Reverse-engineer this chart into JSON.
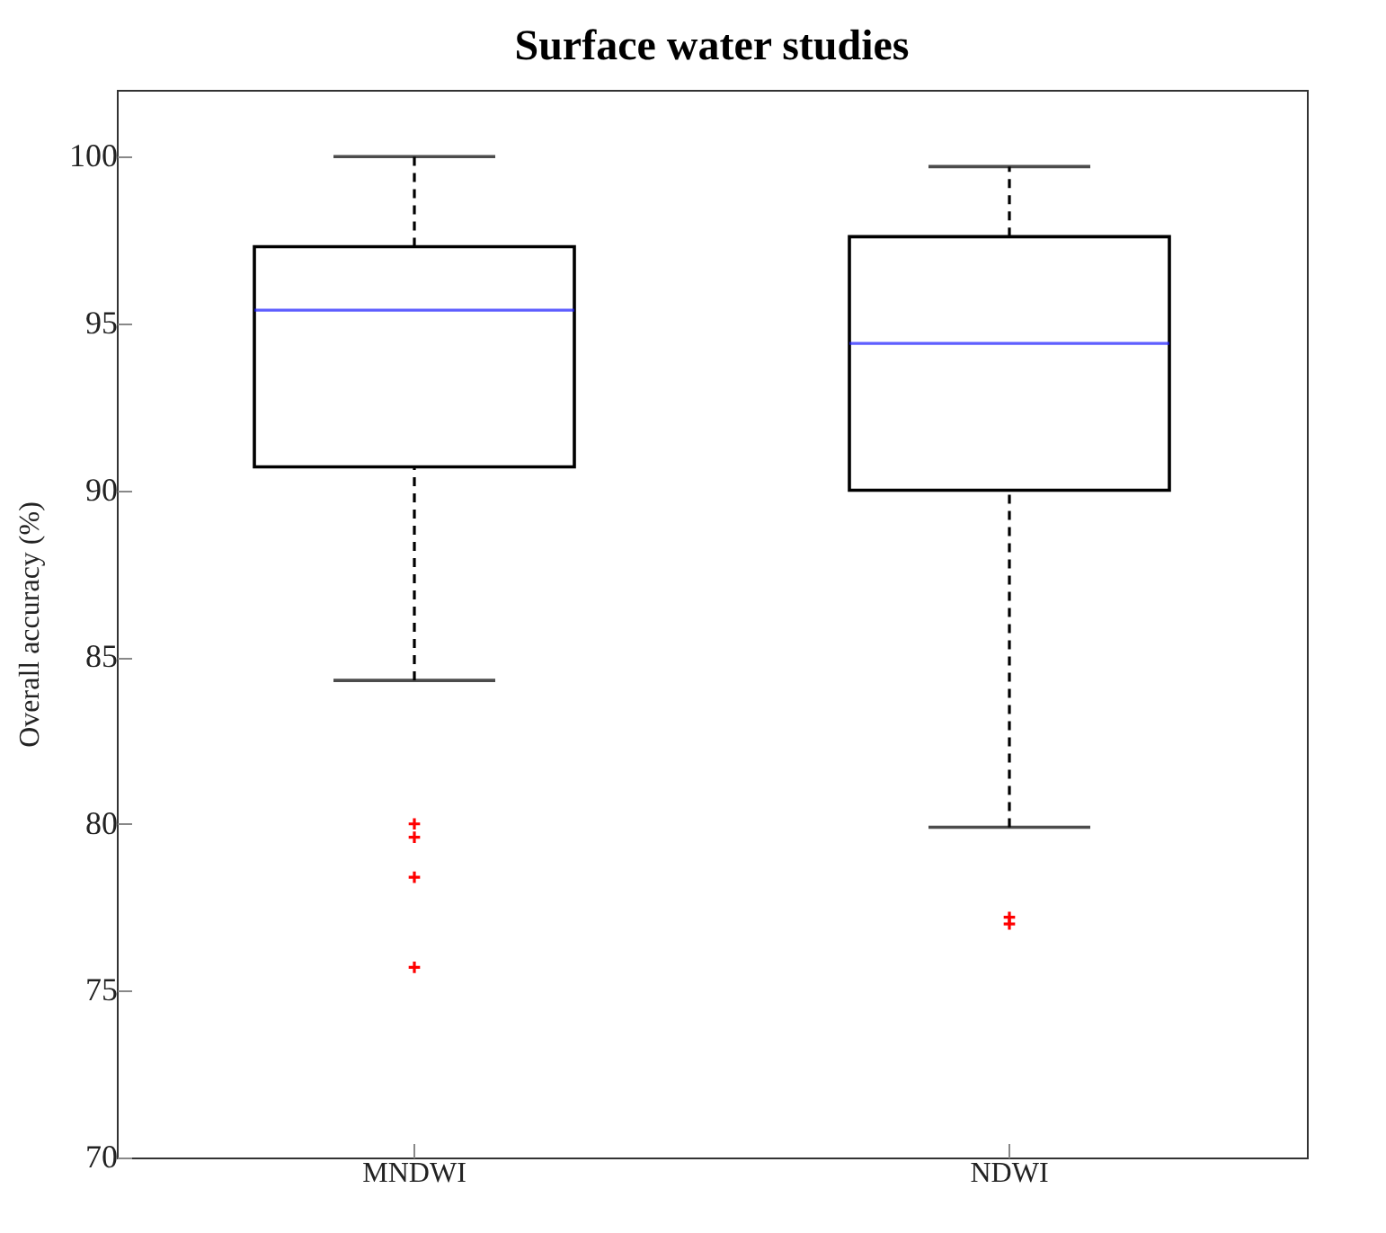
{
  "chart_data": {
    "type": "box",
    "title": "Surface water studies",
    "ylabel": "Overall accuracy (%)",
    "categories": [
      "MNDWI",
      "NDWI"
    ],
    "boxes": [
      {
        "low": 84.3,
        "q1": 90.7,
        "median": 95.4,
        "q3": 97.3,
        "high": 100,
        "outliers": [
          80.0,
          79.6,
          78.4,
          75.7
        ]
      },
      {
        "low": 79.9,
        "q1": 90.0,
        "median": 94.4,
        "q3": 97.6,
        "high": 99.7,
        "outliers": [
          77.2,
          77.0
        ]
      }
    ],
    "ylim": [
      70,
      102
    ],
    "yticks": [
      70,
      75,
      80,
      85,
      90,
      95,
      100
    ],
    "grid": false,
    "legend": false,
    "line_style": "dashed",
    "marker": "cross"
  }
}
